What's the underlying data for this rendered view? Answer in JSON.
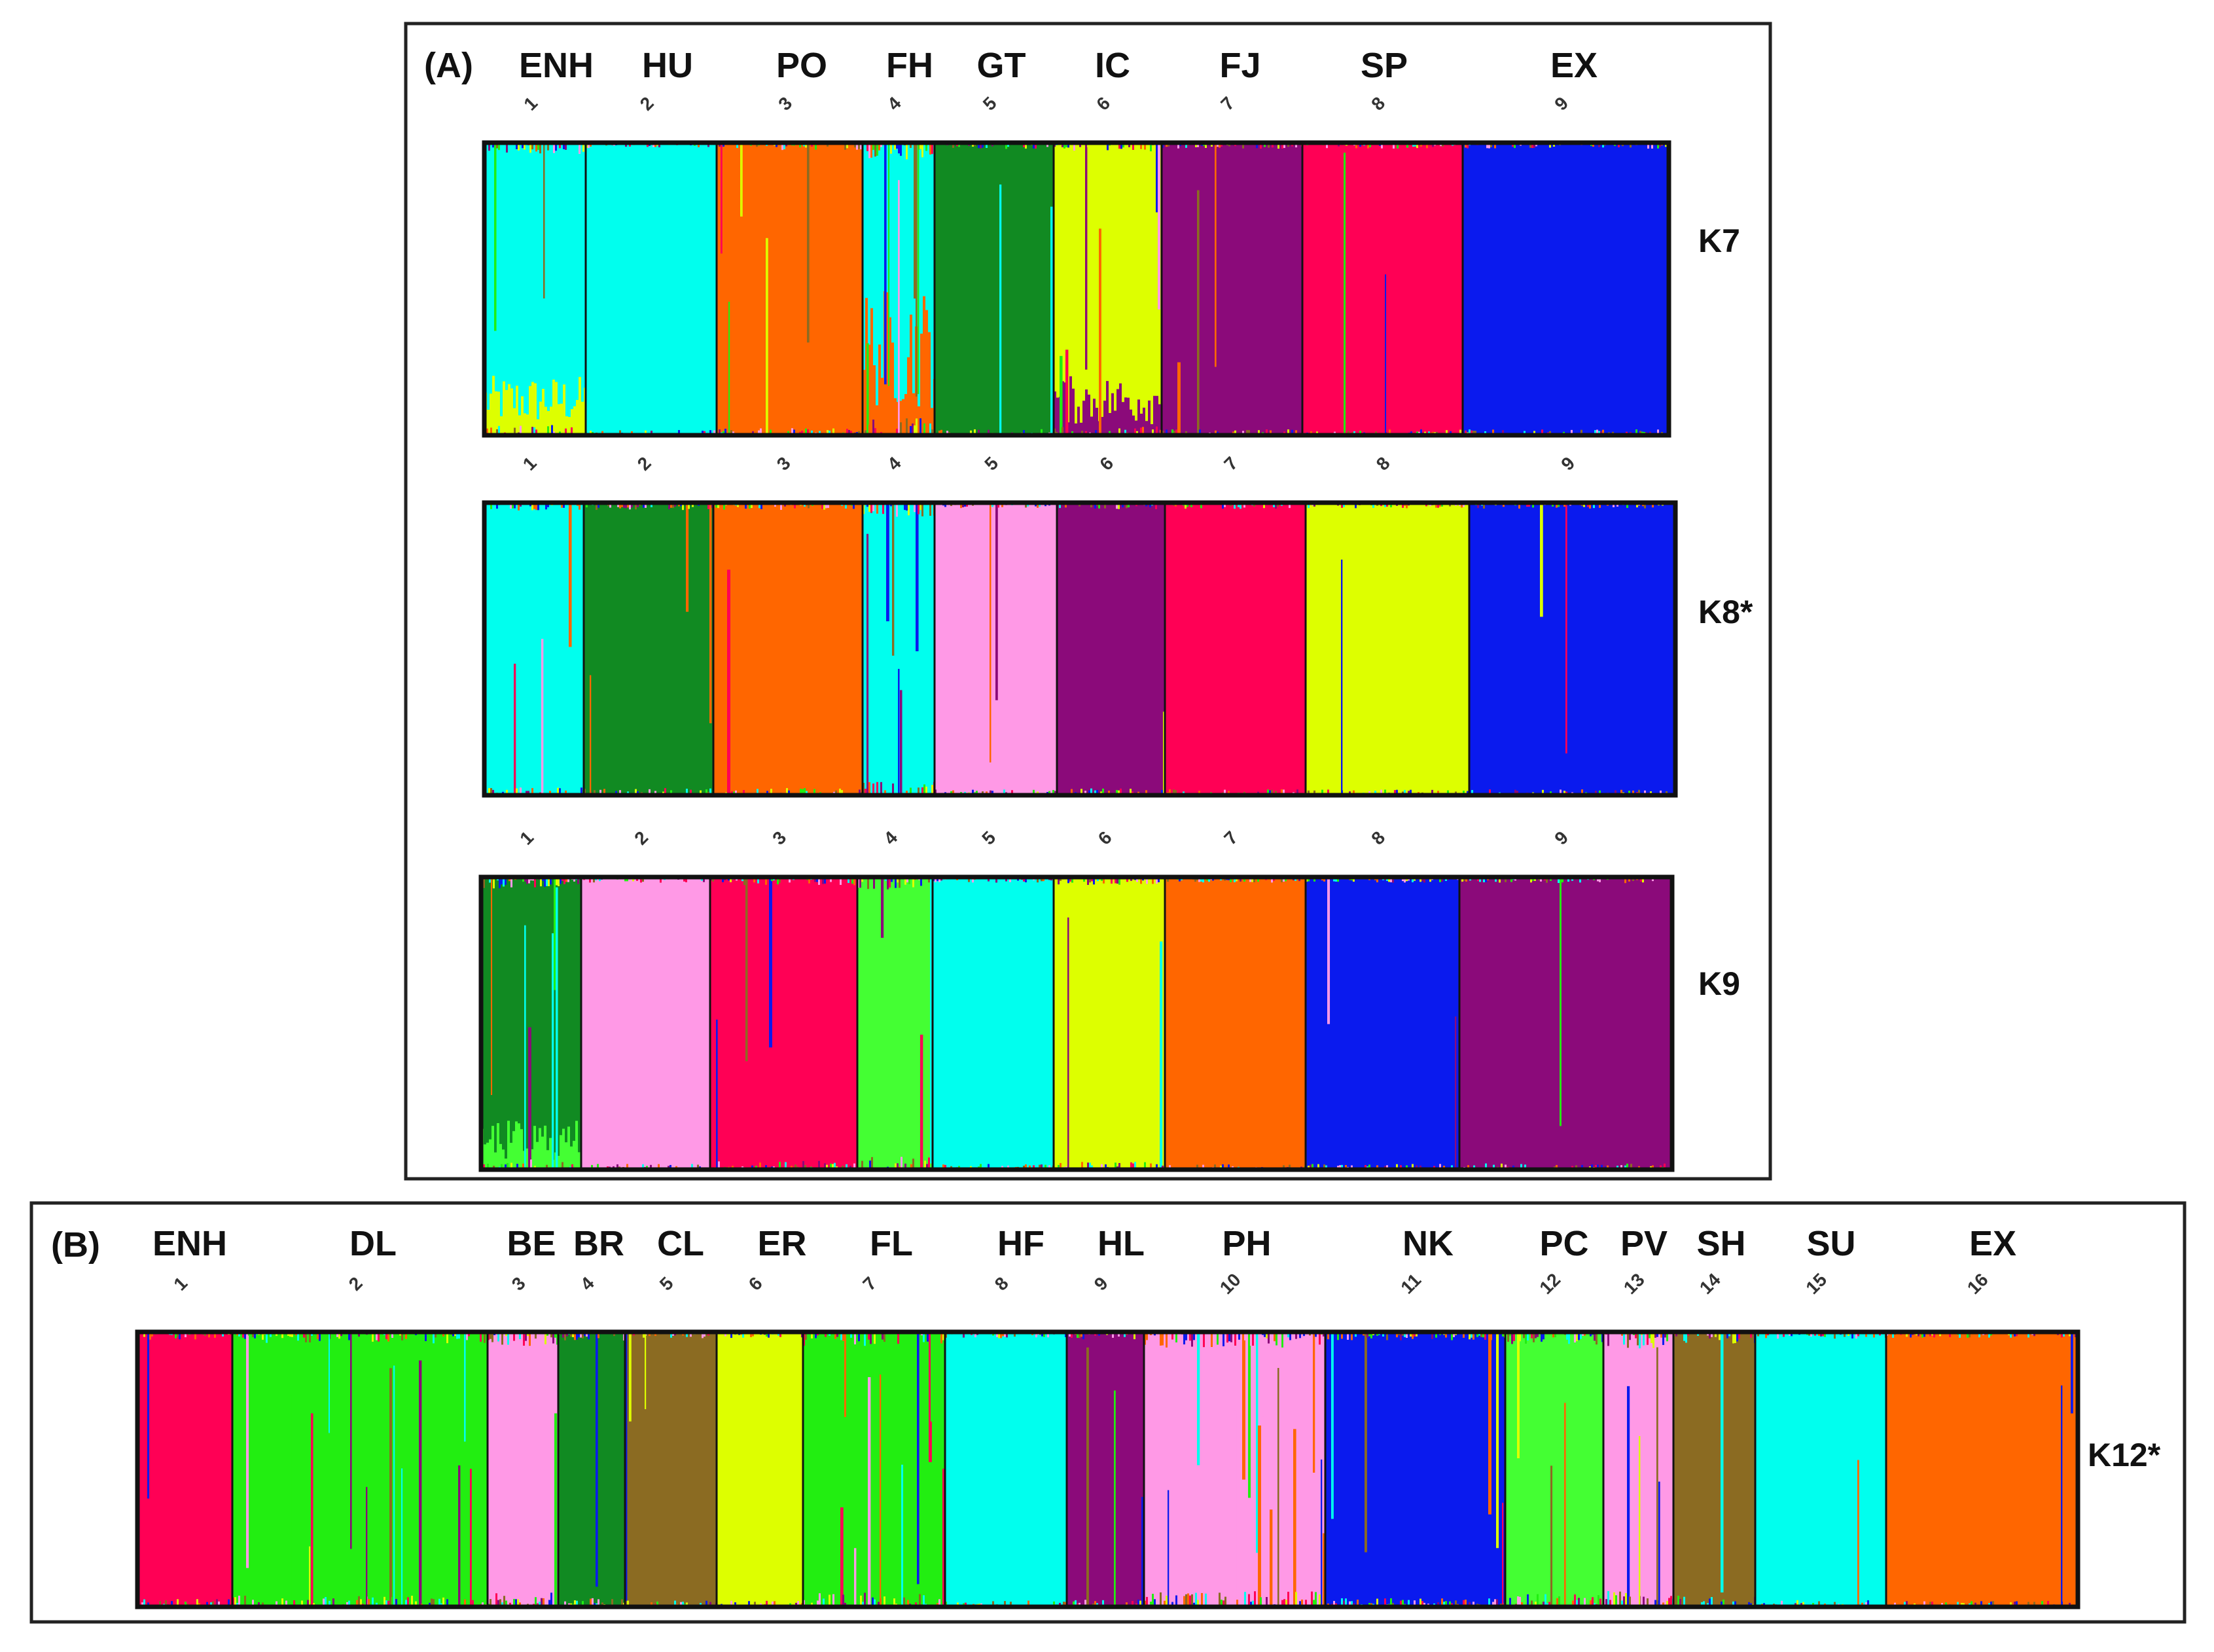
{
  "colors": {
    "cyan": "#00FFEE",
    "orange": "#FF6600",
    "dark_green": "#118A22",
    "yellow": "#DDFF00",
    "purple": "#8B0A7A",
    "red": "#FF0055",
    "blue": "#0A1AEE",
    "pink": "#FF99E6",
    "bright_green": "#22EE11",
    "light_green": "#44FF33",
    "brown": "#8B6B22"
  },
  "noise_palette": [
    "#FF6600",
    "#0A1AEE",
    "#8B0A7A",
    "#DDFF00",
    "#FF0055",
    "#22EE11",
    "#00FFEE",
    "#FF99E6",
    "#8B6B22"
  ],
  "chart_data": [
    {
      "type": "bar",
      "panel": "(A)",
      "panel_label": "(A)",
      "population_labels": [
        "ENH",
        "HU",
        "PO",
        "FH",
        "GT",
        "IC",
        "FJ",
        "SP",
        "EX"
      ],
      "plots": [
        {
          "k_label": "K7",
          "group_numbers": [
            "1",
            "2",
            "3",
            "4",
            "5",
            "6",
            "7",
            "8",
            "9"
          ],
          "groups": [
            {
              "color": "cyan",
              "noise": 0.25,
              "secondary": "yellow",
              "secondary_frac": 0.12
            },
            {
              "color": "cyan",
              "noise": 0.03
            },
            {
              "color": "orange",
              "noise": 0.1
            },
            {
              "color": "cyan",
              "noise": 0.45,
              "secondary": "orange",
              "secondary_frac": 0.3
            },
            {
              "color": "dark_green",
              "noise": 0.06
            },
            {
              "color": "yellow",
              "noise": 0.15,
              "secondary": "purple",
              "secondary_frac": 0.12
            },
            {
              "color": "purple",
              "noise": 0.05
            },
            {
              "color": "red",
              "noise": 0.05
            },
            {
              "color": "blue",
              "noise": 0.05
            }
          ]
        },
        {
          "k_label": "K8*",
          "group_numbers": [
            "1",
            "2",
            "3",
            "4",
            "5",
            "6",
            "7",
            "8",
            "9"
          ],
          "groups": [
            {
              "color": "cyan",
              "noise": 0.12
            },
            {
              "color": "dark_green",
              "noise": 0.1
            },
            {
              "color": "orange",
              "noise": 0.1
            },
            {
              "color": "cyan",
              "noise": 0.35
            },
            {
              "color": "pink",
              "noise": 0.04
            },
            {
              "color": "purple",
              "noise": 0.08
            },
            {
              "color": "red",
              "noise": 0.06
            },
            {
              "color": "yellow",
              "noise": 0.04
            },
            {
              "color": "blue",
              "noise": 0.05
            }
          ]
        },
        {
          "k_label": "K9",
          "group_numbers": [
            "1",
            "2",
            "3",
            "4",
            "5",
            "6",
            "7",
            "8",
            "9"
          ],
          "groups": [
            {
              "color": "dark_green",
              "noise": 0.25,
              "secondary": "light_green",
              "secondary_frac": 0.1
            },
            {
              "color": "pink",
              "noise": 0.04
            },
            {
              "color": "red",
              "noise": 0.15
            },
            {
              "color": "light_green",
              "noise": 0.3
            },
            {
              "color": "cyan",
              "noise": 0.04
            },
            {
              "color": "yellow",
              "noise": 0.12
            },
            {
              "color": "orange",
              "noise": 0.04
            },
            {
              "color": "blue",
              "noise": 0.04
            },
            {
              "color": "purple",
              "noise": 0.06
            }
          ]
        }
      ]
    },
    {
      "type": "bar",
      "panel": "(B)",
      "panel_label": "(B)",
      "population_labels": [
        "ENH",
        "DL",
        "BE",
        "BR",
        "CL",
        "ER",
        "FL",
        "HF",
        "HL",
        "PH",
        "NK",
        "PC",
        "PV",
        "SH",
        "SU",
        "EX"
      ],
      "plots": [
        {
          "k_label": "K12*",
          "group_numbers": [
            "1",
            "2",
            "3",
            "4",
            "5",
            "6",
            "7",
            "8",
            "9",
            "10",
            "11",
            "12",
            "13",
            "14",
            "15",
            "16"
          ],
          "groups": [
            {
              "color": "red",
              "noise": 0.12
            },
            {
              "color": "bright_green",
              "noise": 0.25
            },
            {
              "color": "pink",
              "noise": 0.35
            },
            {
              "color": "dark_green",
              "noise": 0.15
            },
            {
              "color": "brown",
              "noise": 0.06
            },
            {
              "color": "yellow",
              "noise": 0.06
            },
            {
              "color": "bright_green",
              "noise": 0.35
            },
            {
              "color": "cyan",
              "noise": 0.06
            },
            {
              "color": "purple",
              "noise": 0.1
            },
            {
              "color": "pink",
              "noise": 0.4
            },
            {
              "color": "blue",
              "noise": 0.15
            },
            {
              "color": "light_green",
              "noise": 0.3
            },
            {
              "color": "pink",
              "noise": 0.45
            },
            {
              "color": "brown",
              "noise": 0.25
            },
            {
              "color": "cyan",
              "noise": 0.08
            },
            {
              "color": "orange",
              "noise": 0.05
            }
          ]
        }
      ]
    }
  ]
}
